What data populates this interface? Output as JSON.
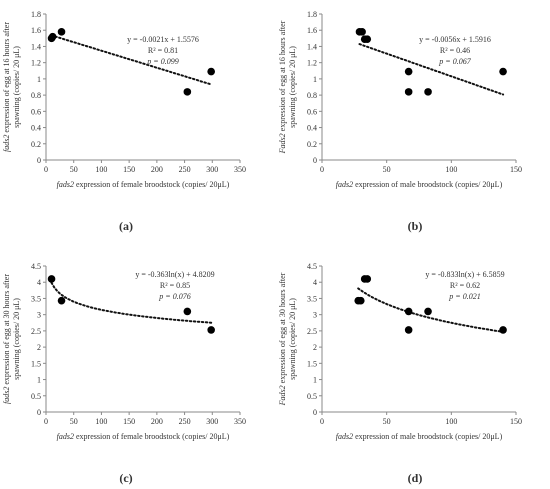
{
  "chart_data": [
    {
      "id": "a",
      "panel_label": "(a)",
      "type": "scatter",
      "xlabel_italic": "fads2",
      "xlabel_rest": " expression of female broodstock (copies/ 20μL)",
      "ylabel_italic": "fads2",
      "ylabel_line1_rest": " expression of egg at 16 hours after",
      "ylabel_line2": "spawning (copies/ 20 μL)",
      "xlim": [
        0,
        350
      ],
      "ylim": [
        0,
        1.8
      ],
      "xticks": [
        0,
        50,
        100,
        150,
        200,
        250,
        300,
        350
      ],
      "yticks": [
        0,
        0.2,
        0.4,
        0.6,
        0.8,
        1,
        1.2,
        1.4,
        1.6,
        1.8
      ],
      "ytick_labels": [
        "0",
        "0.2",
        "0.4",
        "0.6",
        "0.8",
        "1",
        "1.2",
        "1.4",
        "1.6",
        "1.8"
      ],
      "points": [
        [
          10,
          1.5
        ],
        [
          12,
          1.52
        ],
        [
          28,
          1.58
        ],
        [
          255,
          0.84
        ],
        [
          298,
          1.09
        ]
      ],
      "trendline": {
        "kind": "linear",
        "a": -0.0021,
        "b": 1.5576,
        "x_range": [
          10,
          298
        ]
      },
      "annotation": [
        "y = -0.0021x + 1.5576",
        "R² = 0.81",
        "p = 0.099"
      ]
    },
    {
      "id": "b",
      "panel_label": "(b)",
      "type": "scatter",
      "xlabel_italic": "fads2",
      "xlabel_rest": " expression of male broodstock (copies/ 20μL)",
      "ylabel_italic": "Fads2",
      "ylabel_line1_rest": " expression of egg at 16 hours after",
      "ylabel_line2": "spawning (copies/ 20 μL)",
      "xlim": [
        0,
        150
      ],
      "ylim": [
        0,
        1.8
      ],
      "xticks": [
        0,
        50,
        100,
        150
      ],
      "yticks": [
        0,
        0.2,
        0.4,
        0.6,
        0.8,
        1,
        1.2,
        1.4,
        1.6,
        1.8
      ],
      "ytick_labels": [
        "0",
        "0.2",
        "0.4",
        "0.6",
        "0.8",
        "1",
        "1.2",
        "1.4",
        "1.6",
        "1.8"
      ],
      "points": [
        [
          29,
          1.58
        ],
        [
          31,
          1.58
        ],
        [
          33,
          1.49
        ],
        [
          35,
          1.49
        ],
        [
          67,
          1.09
        ],
        [
          67,
          0.84
        ],
        [
          82,
          0.84
        ],
        [
          140,
          1.09
        ]
      ],
      "trendline": {
        "kind": "linear",
        "a": -0.0056,
        "b": 1.5916,
        "x_range": [
          29,
          140
        ]
      },
      "annotation": [
        "y = -0.0056x + 1.5916",
        "R² = 0.46",
        "p = 0.067"
      ]
    },
    {
      "id": "c",
      "panel_label": "(c)",
      "type": "scatter",
      "xlabel_italic": "fads2",
      "xlabel_rest": " expression of female broodstock (copies/ 20μL)",
      "ylabel_italic": "fads2",
      "ylabel_line1_rest": " expression of egg at 30 hours after",
      "ylabel_line2": "spawning (copies/ 20 μL)",
      "xlim": [
        0,
        350
      ],
      "ylim": [
        0,
        4.5
      ],
      "xticks": [
        0,
        50,
        100,
        150,
        200,
        250,
        300,
        350
      ],
      "yticks": [
        0,
        0.5,
        1,
        1.5,
        2,
        2.5,
        3,
        3.5,
        4,
        4.5
      ],
      "ytick_labels": [
        "0",
        "0.5",
        "1",
        "1.5",
        "2",
        "2.5",
        "3",
        "3.5",
        "4",
        "4.5"
      ],
      "points": [
        [
          10,
          4.1
        ],
        [
          28,
          3.43
        ],
        [
          255,
          3.1
        ],
        [
          298,
          2.53
        ]
      ],
      "trendline": {
        "kind": "log",
        "a": -0.363,
        "b": 4.8209,
        "x_range": [
          10,
          298
        ]
      },
      "annotation": [
        "y = -0.363ln(x) + 4.8209",
        "R² = 0.85",
        "p = 0.076"
      ]
    },
    {
      "id": "d",
      "panel_label": "(d)",
      "type": "scatter",
      "xlabel_italic": "fads2",
      "xlabel_rest": " expression of male broodstock (copies/ 20μL)",
      "ylabel_italic": "Fads2",
      "ylabel_line1_rest": " expression of egg at 30 hours after",
      "ylabel_line2": "spawning (copies/ 20 μL)",
      "xlim": [
        0,
        150
      ],
      "ylim": [
        0,
        4.5
      ],
      "xticks": [
        0,
        50,
        100,
        150
      ],
      "yticks": [
        0,
        0.5,
        1,
        1.5,
        2,
        2.5,
        3,
        3.5,
        4,
        4.5
      ],
      "ytick_labels": [
        "0",
        "0.5",
        "1",
        "1.5",
        "2",
        "2.5",
        "3",
        "3.5",
        "4",
        "4.5"
      ],
      "points": [
        [
          28,
          3.43
        ],
        [
          30,
          3.43
        ],
        [
          33,
          4.1
        ],
        [
          35,
          4.1
        ],
        [
          67,
          3.1
        ],
        [
          67,
          2.53
        ],
        [
          82,
          3.1
        ],
        [
          140,
          2.53
        ]
      ],
      "trendline": {
        "kind": "log",
        "a": -0.833,
        "b": 6.5859,
        "x_range": [
          28,
          140
        ]
      },
      "annotation": [
        "y = -0.833ln(x) + 6.5859",
        "R² = 0.62",
        "p = 0.021"
      ]
    }
  ]
}
